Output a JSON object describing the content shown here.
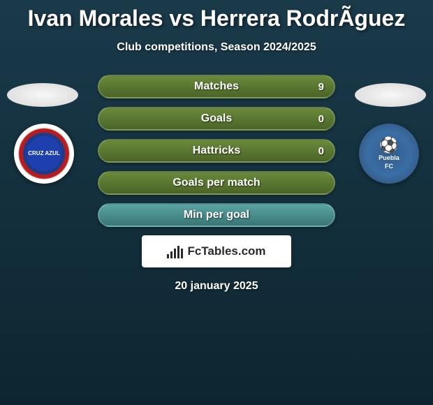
{
  "title": "Ivan Morales vs Herrera RodrÃ­guez",
  "subtitle": "Club competitions, Season 2024/2025",
  "date": "20 january 2025",
  "fctables_label": "FcTables.com",
  "players": {
    "left": {
      "club_short": "CRUZ AZUL"
    },
    "right": {
      "club_short": "Puebla",
      "club_sub": "FC"
    }
  },
  "stats": [
    {
      "label": "Matches",
      "right_value": "9",
      "bg": "#6a8a3a",
      "bg2": "#4a6428"
    },
    {
      "label": "Goals",
      "right_value": "0",
      "bg": "#6a8a3a",
      "bg2": "#4a6428"
    },
    {
      "label": "Hattricks",
      "right_value": "0",
      "bg": "#6a8a3a",
      "bg2": "#4a6428"
    },
    {
      "label": "Goals per match",
      "right_value": "",
      "bg": "#6a8a3a",
      "bg2": "#4a6428"
    },
    {
      "label": "Min per goal",
      "right_value": "",
      "bg": "#5aa5a5",
      "bg2": "#3a7575"
    }
  ],
  "fctables_bars_heights": [
    6,
    10,
    14,
    18,
    14
  ]
}
